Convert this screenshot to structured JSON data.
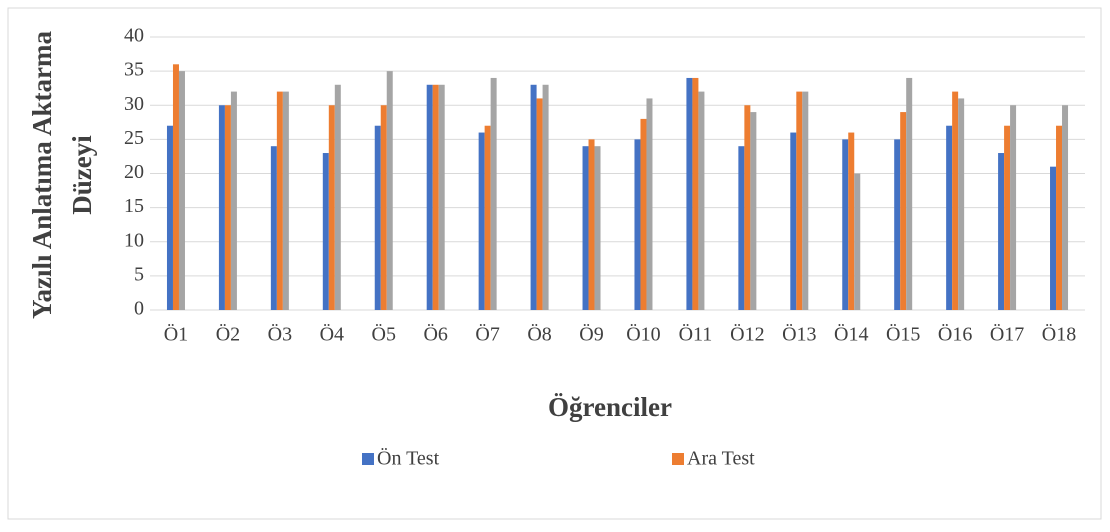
{
  "chart_data": {
    "type": "bar",
    "ylabel": [
      "Yazılı Anlatıma Aktarma",
      "Düzeyi"
    ],
    "xlabel": "Öğrenciler",
    "categories": [
      "Ö1",
      "Ö2",
      "Ö3",
      "Ö4",
      "Ö5",
      "Ö6",
      "Ö7",
      "Ö8",
      "Ö9",
      "Ö10",
      "Ö11",
      "Ö12",
      "Ö13",
      "Ö14",
      "Ö15",
      "Ö16",
      "Ö17",
      "Ö18"
    ],
    "series": [
      {
        "name": "Ön Test",
        "color": "#4472c4",
        "values": [
          27,
          30,
          24,
          23,
          27,
          33,
          26,
          33,
          24,
          25,
          34,
          24,
          26,
          25,
          25,
          27,
          23,
          21
        ]
      },
      {
        "name": "Ara Test",
        "color": "#ed7d31",
        "values": [
          36,
          30,
          32,
          30,
          30,
          33,
          27,
          31,
          25,
          28,
          34,
          30,
          32,
          26,
          29,
          32,
          27,
          27
        ]
      },
      {
        "color": "#a5a5a5",
        "values": [
          35,
          32,
          32,
          33,
          35,
          33,
          34,
          33,
          24,
          31,
          32,
          29,
          32,
          20,
          34,
          31,
          30,
          30
        ]
      }
    ],
    "ylim": [
      0,
      40
    ],
    "yticks": [
      0,
      5,
      10,
      15,
      20,
      25,
      30,
      35,
      40
    ],
    "grid": true,
    "legend": "bottom"
  }
}
